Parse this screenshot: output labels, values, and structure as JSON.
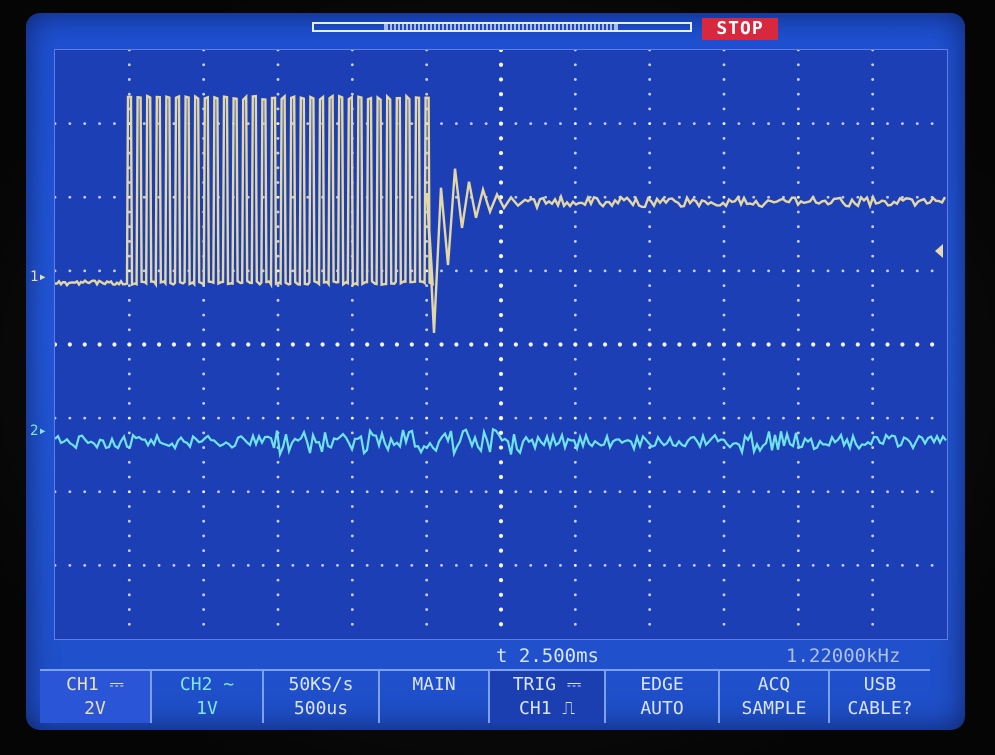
{
  "status": "STOP",
  "channels": {
    "ch1_marker": "1",
    "ch2_marker": "2"
  },
  "readouts": {
    "trigger_time": "t 2.500ms",
    "frequency": "1.22000kHz"
  },
  "softkeys": [
    {
      "line1": "CH1 ⎓",
      "line2": "2V"
    },
    {
      "line1": "CH2 ∼",
      "line2": "1V"
    },
    {
      "line1": "50KS/s",
      "line2": "500us"
    },
    {
      "line1": "MAIN",
      "line2": ""
    },
    {
      "line1": "TRIG ⎓",
      "line2": "CH1 ⎍"
    },
    {
      "line1": "EDGE",
      "line2": "AUTO"
    },
    {
      "line1": "ACQ",
      "line2": "SAMPLE"
    },
    {
      "line1": "USB",
      "line2": "CABLE?"
    }
  ],
  "colors": {
    "ch1_trace": "#e4d7a6",
    "ch2_trace": "#6fe3ea",
    "screen_bg": "#1f4fd0",
    "stop_bg": "#d8283e"
  }
}
